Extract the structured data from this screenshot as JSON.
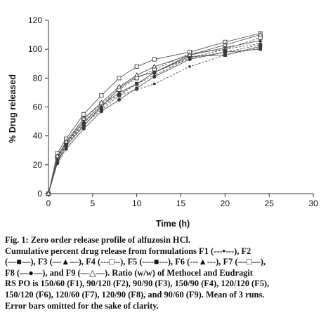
{
  "chart_data": {
    "type": "line",
    "xlabel": "Time (h)",
    "ylabel": "% Drug released",
    "xlim": [
      0,
      30
    ],
    "ylim": [
      0,
      120
    ],
    "xticks": [
      "0",
      "5",
      "10",
      "15",
      "20",
      "25",
      "30"
    ],
    "yticks": [
      "0",
      "20",
      "40",
      "60",
      "80",
      "100",
      "120"
    ],
    "grid": false,
    "x": [
      0,
      1,
      2,
      4,
      6,
      8,
      10,
      12,
      16,
      20,
      24
    ],
    "series": [
      {
        "name": "F1",
        "marker": "circle-small",
        "line_style": "dashed",
        "values": [
          0,
          23,
          33,
          48,
          58,
          68,
          72,
          76,
          88,
          96,
          101
        ]
      },
      {
        "name": "F2",
        "marker": "square",
        "line_style": "solid",
        "values": [
          0,
          22,
          33,
          47,
          60,
          73,
          81,
          84,
          95,
          96,
          102
        ]
      },
      {
        "name": "F3",
        "marker": "triangle",
        "line_style": "solid",
        "values": [
          0,
          24,
          35,
          50,
          61,
          70,
          76,
          84,
          96,
          101,
          106
        ]
      },
      {
        "name": "F4",
        "marker": "square-open",
        "line_style": "dashed",
        "values": [
          0,
          25,
          35,
          52,
          62,
          72,
          80,
          86,
          97,
          100,
          108
        ]
      },
      {
        "name": "F5",
        "marker": "square",
        "line_style": "dashed",
        "values": [
          0,
          22,
          34,
          48,
          58,
          68,
          76,
          84,
          94,
          98,
          103
        ]
      },
      {
        "name": "F6",
        "marker": "triangle",
        "line_style": "dashed",
        "values": [
          0,
          24,
          35,
          49,
          60,
          69,
          76,
          82,
          94,
          100,
          104
        ]
      },
      {
        "name": "F7",
        "marker": "square-open",
        "line_style": "solid",
        "values": [
          0,
          28,
          38,
          55,
          68,
          80,
          88,
          93,
          98,
          105,
          111
        ]
      },
      {
        "name": "F8",
        "marker": "circle",
        "line_style": "solid",
        "values": [
          0,
          21,
          31,
          45,
          57,
          65,
          73,
          81,
          93,
          98,
          100
        ]
      },
      {
        "name": "F9",
        "marker": "triangle-open",
        "line_style": "solid",
        "values": [
          0,
          26,
          36,
          52,
          63,
          74,
          82,
          88,
          96,
          103,
          110
        ]
      }
    ]
  },
  "caption": {
    "line1": "Fig. 1: Zero order release profile of alfuzosin HCl.",
    "line2": "Cumulative percent drug release from formulations F1 (---•---), F2",
    "line3": "(—■—), F3 (—▲—), F4 (---□--), F5 (----■---), F6 (---▲---), F7 (—□—),",
    "line4": "F8 (—●—), and F9 (—△—). Ratio (w/w) of Methocel and Eudragit",
    "line5": "RS PO is 150/60 (F1), 90/120 (F2), 90/90 (F3), 150/90 (F4), 120/120 (F5),",
    "line6": "150/120 (F6), 120/60 (F7), 120/90 (F8), and 90/60 (F9). Mean of 3 runs.",
    "line7": "Error bars omitted for the sake of clarity."
  }
}
